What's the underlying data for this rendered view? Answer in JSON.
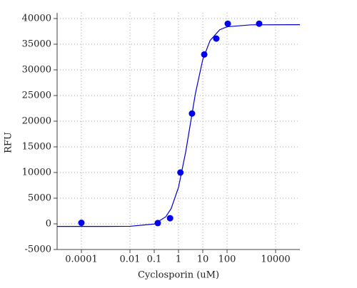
{
  "chart_data": {
    "type": "scatter",
    "xlabel": "Cyclosporin (uM)",
    "ylabel": "RFU",
    "xscale": "log",
    "grid": true,
    "xlim": [
      1e-05,
      100000
    ],
    "ylim": [
      -5000,
      40000
    ],
    "xticks": [
      0.0001,
      0.01,
      0.1,
      1,
      10,
      100,
      10000
    ],
    "yticks": [
      -5000,
      0,
      5000,
      10000,
      15000,
      20000,
      25000,
      30000,
      35000,
      40000
    ],
    "series": [
      {
        "mode": "lines",
        "color": "#0000cc",
        "x": [
          1e-05,
          0.001,
          0.01,
          0.1,
          0.3,
          0.5,
          1,
          2,
          3,
          5,
          10,
          20,
          50,
          100,
          1000,
          100000
        ],
        "values": [
          -500,
          -499,
          -476,
          -33,
          1376,
          2987,
          7100,
          14110,
          19150,
          25440,
          32006,
          35720,
          37812,
          38392,
          38779,
          38800
        ]
      },
      {
        "mode": "markers",
        "color": "#0000ee",
        "x": [
          0.0001,
          0.14,
          0.45,
          1.2,
          3.6,
          11.5,
          36,
          107,
          2100
        ],
        "values": [
          200,
          150,
          1100,
          10000,
          21500,
          33000,
          36100,
          39000,
          39000
        ]
      }
    ]
  }
}
